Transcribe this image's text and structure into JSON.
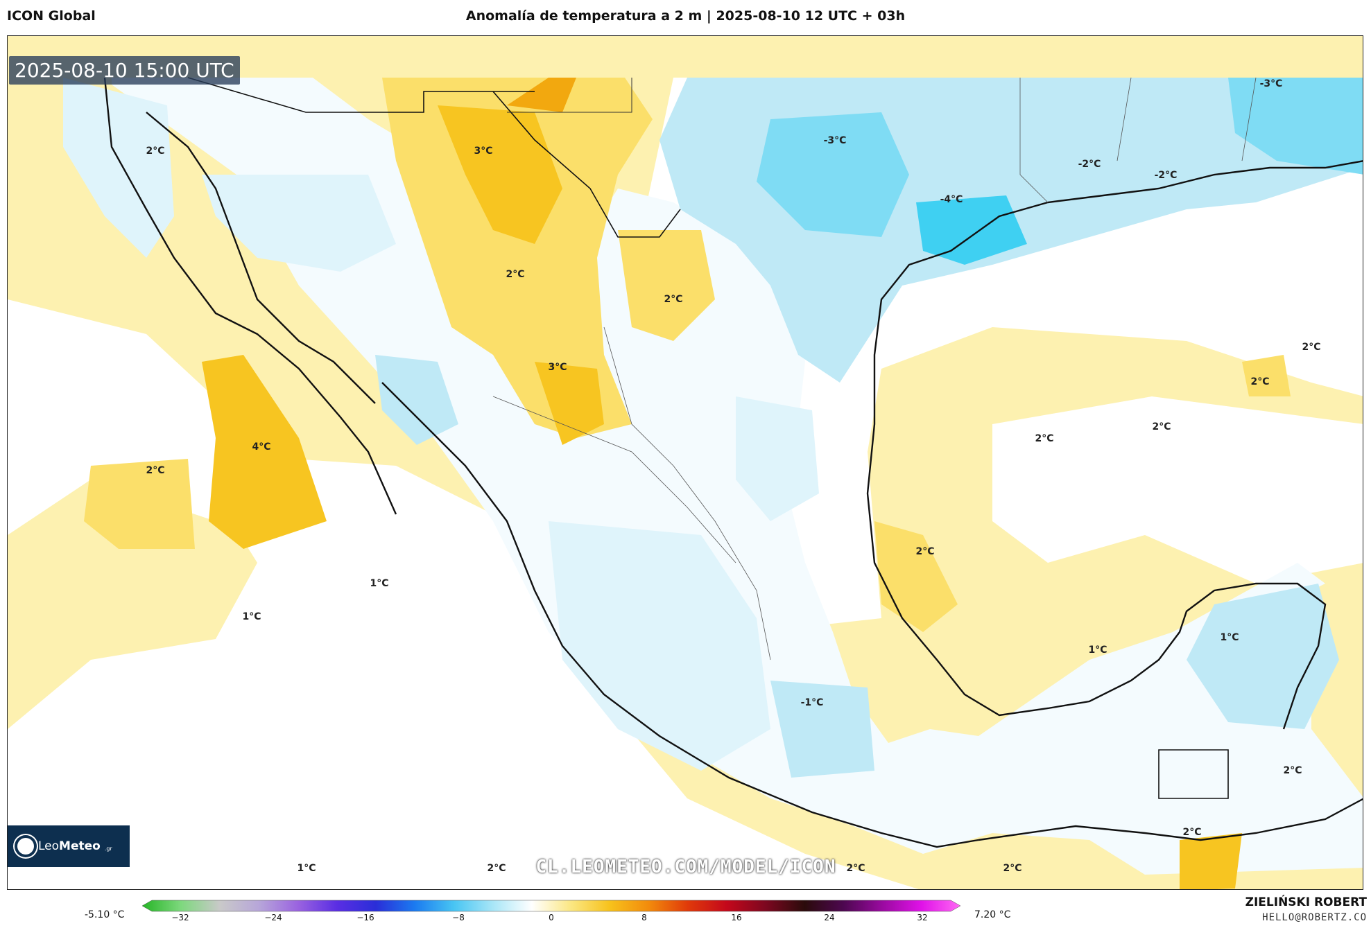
{
  "header": {
    "model": "ICON Global",
    "title": "Anomalía de temperatura a 2 m | 2025-08-10 12 UTC + 03h"
  },
  "map": {
    "timestamp": "2025-08-10 15:00 UTC",
    "watermark": "CL.LEOMETEO.COM/MODEL/ICON",
    "logo": {
      "brand_a": "Leo",
      "brand_b": "Meteo",
      "suffix": ".gr"
    },
    "colors": {
      "ocean_warm": "#fdf1b0",
      "warm_2": "#fbdf6a",
      "warm_3": "#f7c521",
      "warm_4": "#f2a80f",
      "cool_1": "#dff4fb",
      "cool_2": "#bfe9f6",
      "cool_3": "#7fdcf4",
      "cool_4": "#3fd0f2",
      "coast": "#111111"
    },
    "labels": [
      {
        "text": "2°C"
      },
      {
        "text": "3°C"
      },
      {
        "text": "2°C"
      },
      {
        "text": "2°C"
      },
      {
        "text": "3°C"
      },
      {
        "text": "4°C"
      },
      {
        "text": "2°C"
      },
      {
        "text": "-3°C"
      },
      {
        "text": "-4°C"
      },
      {
        "text": "-2°C"
      },
      {
        "text": "-2°C"
      },
      {
        "text": "-3°C"
      },
      {
        "text": "2°C"
      },
      {
        "text": "2°C"
      },
      {
        "text": "2°C"
      },
      {
        "text": "2°C"
      },
      {
        "text": "2°C"
      },
      {
        "text": "1°C"
      },
      {
        "text": "1°C"
      },
      {
        "text": "1°C"
      },
      {
        "text": "1°C"
      },
      {
        "text": "-1°C"
      },
      {
        "text": "2°C"
      },
      {
        "text": "1°C"
      },
      {
        "text": "2°C"
      },
      {
        "text": "2°C"
      },
      {
        "text": "2°C"
      },
      {
        "text": "2°C"
      }
    ]
  },
  "colorbar": {
    "min_label": "-5.10 °C",
    "max_label": "7.20 °C",
    "ticks": [
      "−32",
      "−24",
      "−16",
      "−8",
      "0",
      "8",
      "16",
      "24",
      "32"
    ],
    "stops": [
      "#26b526",
      "#7ed87e",
      "#c9c9c9",
      "#b7a6d9",
      "#9a63e0",
      "#5a2ee3",
      "#2a2ed8",
      "#1b7bf0",
      "#48c5f3",
      "#a8e6f7",
      "#ffffff",
      "#fbe783",
      "#f7c21c",
      "#f28b0c",
      "#e03a0a",
      "#c4081b",
      "#7d0820",
      "#2b0b0b",
      "#4d0750",
      "#9a0aa0",
      "#e012e8",
      "#ff69f4"
    ]
  },
  "footer": {
    "author": "ZIELIŃSKI ROBERT",
    "email": "HELLO@ROBERTZ.CO"
  }
}
